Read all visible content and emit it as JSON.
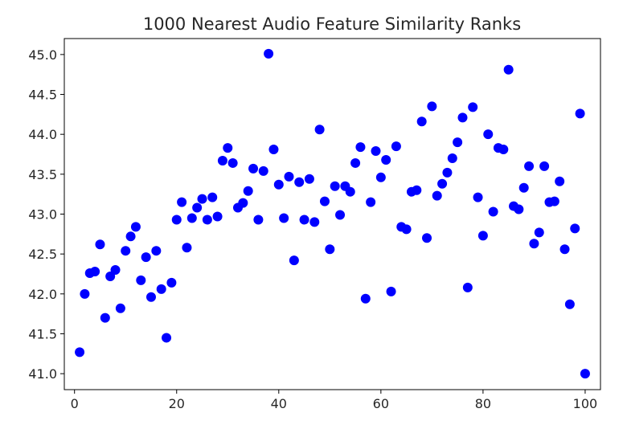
{
  "chart_data": {
    "type": "scatter",
    "title": "1000 Nearest Audio Feature Similarity Ranks",
    "xlabel": "",
    "ylabel": "",
    "xlim": [
      -2,
      103
    ],
    "ylim": [
      40.8,
      45.2
    ],
    "xticks": [
      0,
      20,
      40,
      60,
      80,
      100
    ],
    "yticks": [
      41.0,
      41.5,
      42.0,
      42.5,
      43.0,
      43.5,
      44.0,
      44.5,
      45.0
    ],
    "xtick_labels": [
      "0",
      "20",
      "40",
      "60",
      "80",
      "100"
    ],
    "ytick_labels": [
      "41.0",
      "41.5",
      "42.0",
      "42.5",
      "43.0",
      "43.5",
      "44.0",
      "44.5",
      "45.0"
    ],
    "grid": false,
    "marker_color": "#0000ff",
    "x": [
      1,
      2,
      3,
      4,
      5,
      6,
      7,
      8,
      9,
      10,
      11,
      12,
      13,
      14,
      15,
      16,
      17,
      18,
      19,
      20,
      21,
      22,
      23,
      24,
      25,
      26,
      27,
      28,
      29,
      30,
      31,
      32,
      33,
      34,
      35,
      36,
      37,
      38,
      39,
      40,
      41,
      42,
      43,
      44,
      45,
      46,
      47,
      48,
      49,
      50,
      51,
      52,
      53,
      54,
      55,
      56,
      57,
      58,
      59,
      60,
      61,
      62,
      63,
      64,
      65,
      66,
      67,
      68,
      69,
      70,
      71,
      72,
      73,
      74,
      75,
      76,
      77,
      78,
      79,
      80,
      81,
      82,
      83,
      84,
      85,
      86,
      87,
      88,
      89,
      90,
      91,
      92,
      93,
      94,
      95,
      96,
      97,
      98,
      99,
      100
    ],
    "y": [
      41.27,
      42.0,
      42.26,
      42.28,
      42.62,
      41.7,
      42.22,
      42.3,
      41.82,
      42.54,
      42.72,
      42.84,
      42.17,
      42.46,
      41.96,
      42.54,
      42.06,
      41.45,
      42.14,
      42.93,
      43.15,
      42.58,
      42.95,
      43.08,
      43.19,
      42.93,
      43.21,
      42.97,
      43.67,
      43.83,
      43.64,
      43.08,
      43.14,
      43.29,
      43.57,
      42.93,
      43.54,
      45.01,
      43.81,
      43.37,
      42.95,
      43.47,
      42.42,
      43.4,
      42.93,
      43.44,
      42.9,
      44.06,
      43.16,
      42.56,
      43.35,
      42.99,
      43.35,
      43.28,
      43.64,
      43.84,
      41.94,
      43.15,
      43.79,
      43.46,
      43.68,
      42.03,
      43.85,
      42.84,
      42.81,
      43.28,
      43.3,
      44.16,
      42.7,
      44.35,
      43.23,
      43.38,
      43.52,
      43.7,
      43.9,
      44.21,
      42.08,
      44.34,
      43.21,
      42.73,
      44.0,
      43.03,
      43.83,
      43.81,
      44.81,
      43.1,
      43.06,
      43.33,
      43.6,
      42.63,
      42.77,
      43.6,
      43.15,
      43.16,
      43.41,
      42.56,
      41.87,
      42.82,
      44.26,
      41.0
    ]
  }
}
